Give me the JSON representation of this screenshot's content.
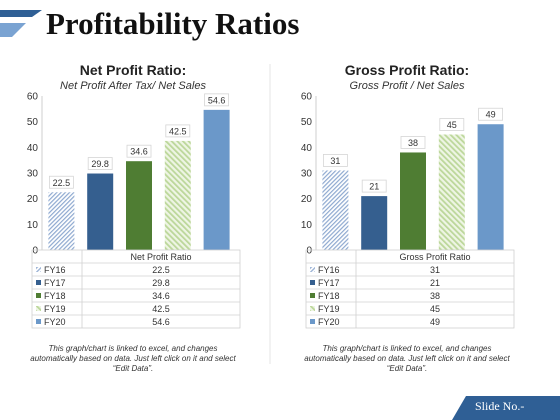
{
  "page": {
    "title": "Profitability Ratios",
    "footer": "Slide No.-"
  },
  "colors": {
    "accent": "#2f5f95",
    "fy16": "#8ea9d0",
    "fy17": "#355f8f",
    "fy18": "#4f7d33",
    "fy19": "#bcd79a",
    "fy20": "#6b98c9"
  },
  "chart_data": [
    {
      "type": "bar",
      "title": "Net Profit Ratio:",
      "subtitle": "Net Profit After Tax/ Net Sales",
      "categories": [
        "FY16",
        "FY17",
        "FY18",
        "FY19",
        "FY20"
      ],
      "values": [
        22.5,
        29.8,
        34.6,
        42.5,
        54.6
      ],
      "data_labels": [
        "22.5",
        "29.8",
        "34.6",
        "42.5",
        "54.6"
      ],
      "table_header": "Net Profit Ratio",
      "ylim": [
        0,
        60
      ],
      "yticks": [
        0,
        10,
        20,
        30,
        40,
        50,
        60
      ],
      "grid": false,
      "legend": "data-table",
      "note": [
        "This graph/chart is linked to excel, and changes",
        "automatically based on data. Just left click on it and select",
        "“Edit Data”."
      ]
    },
    {
      "type": "bar",
      "title": "Gross Profit Ratio:",
      "subtitle": "Gross Profit / Net Sales",
      "categories": [
        "FY16",
        "FY17",
        "FY18",
        "FY19",
        "FY20"
      ],
      "values": [
        31,
        21,
        38,
        45,
        49
      ],
      "data_labels": [
        "31",
        "21",
        "38",
        "45",
        "49"
      ],
      "table_header": "Gross Profit Ratio",
      "ylim": [
        0,
        60
      ],
      "yticks": [
        0,
        10,
        20,
        30,
        40,
        50,
        60
      ],
      "grid": false,
      "legend": "data-table",
      "note": [
        "This graph/chart is linked to excel, and changes",
        "automatically based on data. Just left click on it and select",
        "“Edit Data”."
      ]
    }
  ]
}
